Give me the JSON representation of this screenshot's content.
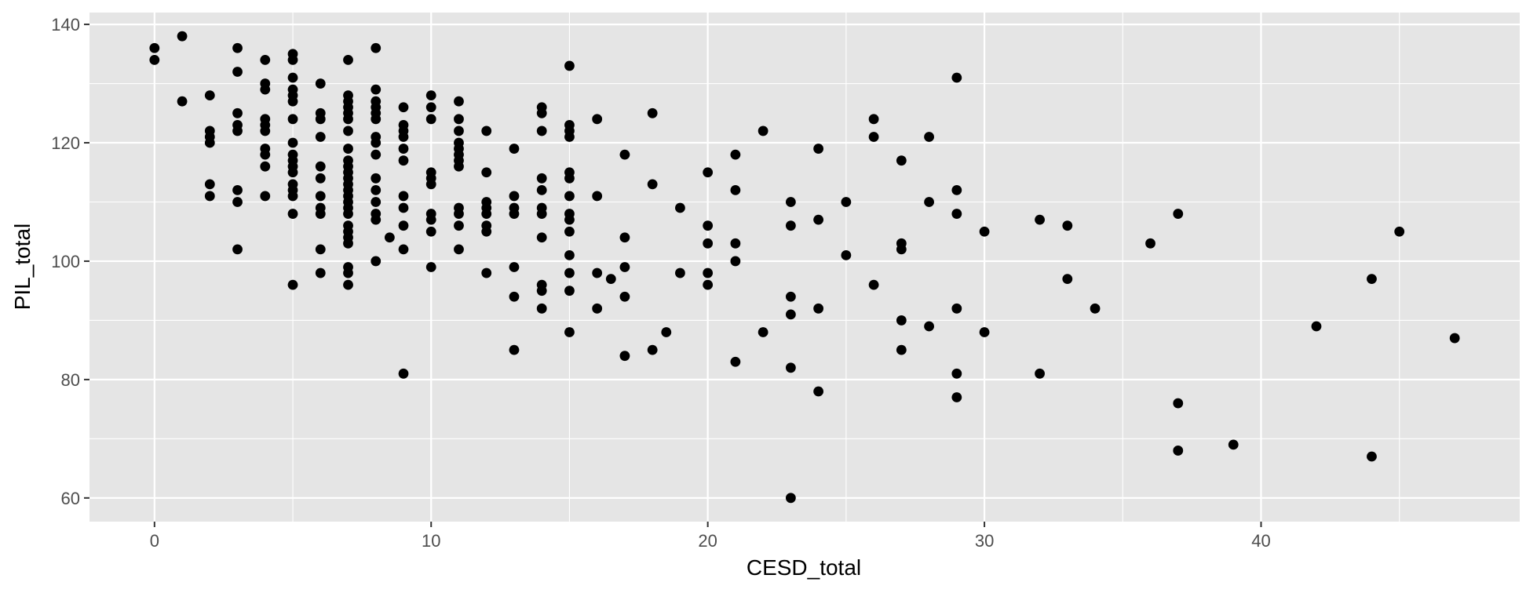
{
  "chart_data": {
    "type": "scatter",
    "xlabel": "CESD_total",
    "ylabel": "PIL_total",
    "xlim": [
      -2.35,
      49.35
    ],
    "ylim": [
      56,
      142
    ],
    "xticks": [
      0,
      10,
      20,
      30,
      40
    ],
    "yticks": [
      60,
      80,
      100,
      120,
      140
    ],
    "xminor": [
      5,
      15,
      25,
      35,
      45
    ],
    "yminor": [
      70,
      90,
      110,
      130
    ],
    "grid": true,
    "panel_background": "#e5e5e5",
    "point_color": "#000000",
    "points": [
      [
        0,
        136
      ],
      [
        0,
        134
      ],
      [
        1,
        138
      ],
      [
        1,
        127
      ],
      [
        2,
        128
      ],
      [
        2,
        122
      ],
      [
        2,
        121
      ],
      [
        2,
        120
      ],
      [
        2,
        113
      ],
      [
        2,
        111
      ],
      [
        3,
        136
      ],
      [
        3,
        132
      ],
      [
        3,
        125
      ],
      [
        3,
        123
      ],
      [
        3,
        122
      ],
      [
        3,
        112
      ],
      [
        3,
        110
      ],
      [
        3,
        102
      ],
      [
        4,
        134
      ],
      [
        4,
        130
      ],
      [
        4,
        129
      ],
      [
        4,
        124
      ],
      [
        4,
        123
      ],
      [
        4,
        122
      ],
      [
        4,
        119
      ],
      [
        4,
        118
      ],
      [
        4,
        116
      ],
      [
        4,
        111
      ],
      [
        5,
        135
      ],
      [
        5,
        134
      ],
      [
        5,
        131
      ],
      [
        5,
        129
      ],
      [
        5,
        128
      ],
      [
        5,
        127
      ],
      [
        5,
        124
      ],
      [
        5,
        120
      ],
      [
        5,
        118
      ],
      [
        5,
        117
      ],
      [
        5,
        116
      ],
      [
        5,
        115
      ],
      [
        5,
        113
      ],
      [
        5,
        112
      ],
      [
        5,
        111
      ],
      [
        5,
        108
      ],
      [
        5,
        96
      ],
      [
        6,
        130
      ],
      [
        6,
        125
      ],
      [
        6,
        124
      ],
      [
        6,
        121
      ],
      [
        6,
        116
      ],
      [
        6,
        114
      ],
      [
        6,
        111
      ],
      [
        6,
        109
      ],
      [
        6,
        108
      ],
      [
        6,
        102
      ],
      [
        6,
        98
      ],
      [
        7,
        134
      ],
      [
        7,
        128
      ],
      [
        7,
        127
      ],
      [
        7,
        126
      ],
      [
        7,
        125
      ],
      [
        7,
        124
      ],
      [
        7,
        122
      ],
      [
        7,
        119
      ],
      [
        7,
        117
      ],
      [
        7,
        116
      ],
      [
        7,
        115
      ],
      [
        7,
        114
      ],
      [
        7,
        113
      ],
      [
        7,
        112
      ],
      [
        7,
        111
      ],
      [
        7,
        110
      ],
      [
        7,
        109
      ],
      [
        7,
        108
      ],
      [
        7,
        106
      ],
      [
        7,
        105
      ],
      [
        7,
        104
      ],
      [
        7,
        103
      ],
      [
        7,
        99
      ],
      [
        7,
        98
      ],
      [
        7,
        96
      ],
      [
        8,
        136
      ],
      [
        8,
        129
      ],
      [
        8,
        127
      ],
      [
        8,
        126
      ],
      [
        8,
        125
      ],
      [
        8,
        124
      ],
      [
        8,
        121
      ],
      [
        8,
        120
      ],
      [
        8,
        118
      ],
      [
        8,
        114
      ],
      [
        8,
        112
      ],
      [
        8,
        110
      ],
      [
        8,
        108
      ],
      [
        8,
        107
      ],
      [
        8,
        100
      ],
      [
        8.5,
        104
      ],
      [
        9,
        126
      ],
      [
        9,
        123
      ],
      [
        9,
        122
      ],
      [
        9,
        121
      ],
      [
        9,
        119
      ],
      [
        9,
        117
      ],
      [
        9,
        111
      ],
      [
        9,
        109
      ],
      [
        9,
        106
      ],
      [
        9,
        102
      ],
      [
        9,
        81
      ],
      [
        10,
        128
      ],
      [
        10,
        126
      ],
      [
        10,
        124
      ],
      [
        10,
        115
      ],
      [
        10,
        114
      ],
      [
        10,
        113
      ],
      [
        10,
        108
      ],
      [
        10,
        107
      ],
      [
        10,
        105
      ],
      [
        10,
        99
      ],
      [
        11,
        127
      ],
      [
        11,
        124
      ],
      [
        11,
        122
      ],
      [
        11,
        120
      ],
      [
        11,
        119
      ],
      [
        11,
        118
      ],
      [
        11,
        117
      ],
      [
        11,
        116
      ],
      [
        11,
        109
      ],
      [
        11,
        108
      ],
      [
        11,
        106
      ],
      [
        11,
        102
      ],
      [
        12,
        122
      ],
      [
        12,
        115
      ],
      [
        12,
        110
      ],
      [
        12,
        109
      ],
      [
        12,
        108
      ],
      [
        12,
        106
      ],
      [
        12,
        105
      ],
      [
        12,
        98
      ],
      [
        13,
        119
      ],
      [
        13,
        111
      ],
      [
        13,
        109
      ],
      [
        13,
        108
      ],
      [
        13,
        99
      ],
      [
        13,
        94
      ],
      [
        13,
        85
      ],
      [
        14,
        126
      ],
      [
        14,
        125
      ],
      [
        14,
        122
      ],
      [
        14,
        114
      ],
      [
        14,
        112
      ],
      [
        14,
        109
      ],
      [
        14,
        108
      ],
      [
        14,
        104
      ],
      [
        14,
        96
      ],
      [
        14,
        95
      ],
      [
        14,
        92
      ],
      [
        15,
        133
      ],
      [
        15,
        123
      ],
      [
        15,
        122
      ],
      [
        15,
        121
      ],
      [
        15,
        115
      ],
      [
        15,
        114
      ],
      [
        15,
        111
      ],
      [
        15,
        108
      ],
      [
        15,
        107
      ],
      [
        15,
        105
      ],
      [
        15,
        101
      ],
      [
        15,
        98
      ],
      [
        15,
        95
      ],
      [
        15,
        88
      ],
      [
        16,
        124
      ],
      [
        16,
        111
      ],
      [
        16,
        98
      ],
      [
        16,
        92
      ],
      [
        16.5,
        97
      ],
      [
        17,
        118
      ],
      [
        17,
        104
      ],
      [
        17,
        99
      ],
      [
        17,
        94
      ],
      [
        17,
        84
      ],
      [
        18,
        125
      ],
      [
        18,
        113
      ],
      [
        18,
        85
      ],
      [
        18.5,
        88
      ],
      [
        19,
        109
      ],
      [
        19,
        98
      ],
      [
        20,
        115
      ],
      [
        20,
        106
      ],
      [
        20,
        103
      ],
      [
        20,
        98
      ],
      [
        20,
        96
      ],
      [
        21,
        118
      ],
      [
        21,
        112
      ],
      [
        21,
        103
      ],
      [
        21,
        100
      ],
      [
        21,
        83
      ],
      [
        22,
        122
      ],
      [
        22,
        88
      ],
      [
        23,
        110
      ],
      [
        23,
        106
      ],
      [
        23,
        94
      ],
      [
        23,
        91
      ],
      [
        23,
        82
      ],
      [
        23,
        60
      ],
      [
        24,
        119
      ],
      [
        24,
        107
      ],
      [
        24,
        92
      ],
      [
        24,
        78
      ],
      [
        25,
        110
      ],
      [
        25,
        101
      ],
      [
        26,
        124
      ],
      [
        26,
        121
      ],
      [
        26,
        96
      ],
      [
        27,
        117
      ],
      [
        27,
        103
      ],
      [
        27,
        102
      ],
      [
        27,
        90
      ],
      [
        27,
        85
      ],
      [
        28,
        121
      ],
      [
        28,
        110
      ],
      [
        28,
        89
      ],
      [
        29,
        131
      ],
      [
        29,
        112
      ],
      [
        29,
        108
      ],
      [
        29,
        92
      ],
      [
        29,
        81
      ],
      [
        29,
        77
      ],
      [
        30,
        105
      ],
      [
        30,
        88
      ],
      [
        32,
        107
      ],
      [
        32,
        81
      ],
      [
        33,
        106
      ],
      [
        33,
        97
      ],
      [
        34,
        92
      ],
      [
        36,
        103
      ],
      [
        37,
        108
      ],
      [
        37,
        76
      ],
      [
        37,
        68
      ],
      [
        39,
        69
      ],
      [
        42,
        89
      ],
      [
        44,
        97
      ],
      [
        44,
        67
      ],
      [
        45,
        105
      ],
      [
        47,
        87
      ]
    ]
  }
}
